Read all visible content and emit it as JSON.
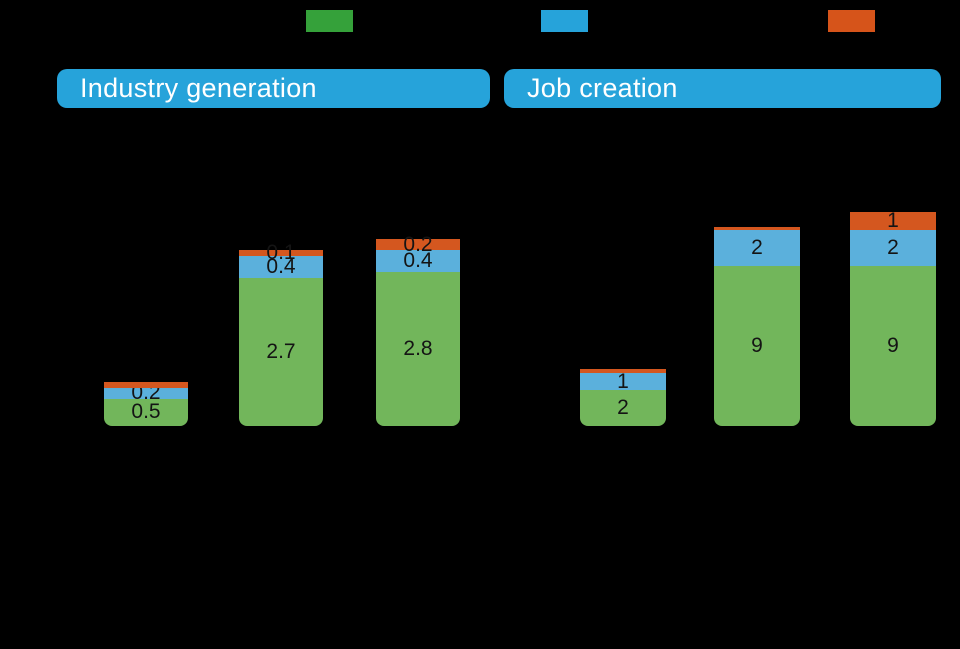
{
  "figure": {
    "background": "#000000",
    "bar_label_color": "#141414"
  },
  "legend": {
    "position": "top",
    "swatches": [
      {
        "name": "green-series-swatch",
        "color": "#35A13A"
      },
      {
        "name": "blue-series-swatch",
        "color": "#26A3DA"
      },
      {
        "name": "orange-series-swatch",
        "color": "#D6541A"
      }
    ]
  },
  "panels": [
    {
      "title": "Industry generation",
      "pill_bg": "#26A3DA",
      "pill_text_color": "#FFFFFF"
    },
    {
      "title": "Job creation",
      "pill_bg": "#26A3DA",
      "pill_text_color": "#FFFFFF"
    }
  ],
  "chart_data": [
    {
      "type": "bar",
      "stacked": true,
      "title": "Industry generation",
      "categories": [
        "",
        "",
        ""
      ],
      "legend_position": "top",
      "grid": false,
      "series": [
        {
          "name": "green",
          "color": "#72B65B",
          "values": [
            0.5,
            2.7,
            2.8
          ],
          "labels": [
            "0.5",
            "2.7",
            "2.8"
          ]
        },
        {
          "name": "blue",
          "color": "#5BB0DC",
          "values": [
            0.2,
            0.4,
            0.4
          ],
          "labels": [
            "0.2",
            "0.4",
            "0.4"
          ]
        },
        {
          "name": "orange",
          "color": "#D4571F",
          "values": [
            0.1,
            0.1,
            0.2
          ],
          "labels": [
            "",
            "0.1",
            "0.2"
          ]
        }
      ]
    },
    {
      "type": "bar",
      "stacked": true,
      "title": "Job creation",
      "categories": [
        "",
        "",
        ""
      ],
      "legend_position": "top",
      "grid": false,
      "series": [
        {
          "name": "green",
          "color": "#72B65B",
          "values": [
            2,
            9,
            9
          ],
          "labels": [
            "2",
            "9",
            "9"
          ]
        },
        {
          "name": "blue",
          "color": "#5BB0DC",
          "values": [
            1,
            2,
            2
          ],
          "labels": [
            "1",
            "2",
            "2"
          ]
        },
        {
          "name": "orange",
          "color": "#D4571F",
          "values": [
            0.2,
            0.2,
            1
          ],
          "labels": [
            "",
            "",
            "1"
          ]
        }
      ]
    }
  ]
}
